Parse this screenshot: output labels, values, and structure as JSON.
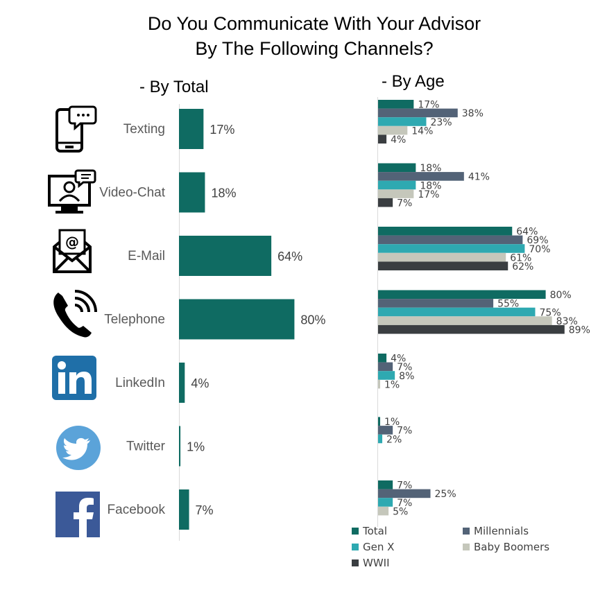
{
  "title_line1": "Do You Communicate With Your Advisor",
  "title_line2": "By The Following Channels?",
  "subheading_total": "- By Total",
  "subheading_age": "- By Age",
  "colors": {
    "total": "#0f6b62",
    "millennials": "#536377",
    "genx": "#2ea9b1",
    "boomers": "#c5c7bb",
    "wwii": "#3a3e41"
  },
  "icons": [
    "phone-chat-icon",
    "video-chat-icon",
    "email-icon",
    "telephone-icon",
    "linkedin-icon",
    "twitter-icon",
    "facebook-icon"
  ],
  "chart_data": [
    {
      "type": "bar",
      "orientation": "horizontal",
      "subtitle": "- By Total",
      "categories": [
        "Texting",
        "Video-Chat",
        "E-Mail",
        "Telephone",
        "LinkedIn",
        "Twitter",
        "Facebook"
      ],
      "values": [
        17,
        18,
        64,
        80,
        4,
        1,
        7
      ],
      "value_format": "{v}%",
      "xlim": [
        0,
        100
      ]
    },
    {
      "type": "bar",
      "orientation": "horizontal",
      "subtitle": "- By Age",
      "categories": [
        "Texting",
        "Video-Chat",
        "E-Mail",
        "Telephone",
        "LinkedIn",
        "Twitter",
        "Facebook"
      ],
      "series": [
        {
          "name": "Total",
          "values": [
            17,
            18,
            64,
            80,
            4,
            1,
            7
          ]
        },
        {
          "name": "Millennials",
          "values": [
            38,
            41,
            69,
            55,
            7,
            7,
            25
          ]
        },
        {
          "name": "Gen X",
          "values": [
            23,
            18,
            70,
            75,
            8,
            2,
            7
          ]
        },
        {
          "name": "Baby Boomers",
          "values": [
            14,
            17,
            61,
            83,
            1,
            null,
            5
          ]
        },
        {
          "name": "WWII",
          "values": [
            4,
            7,
            62,
            89,
            null,
            null,
            null
          ]
        }
      ],
      "value_format": "{v}%",
      "xlim": [
        0,
        100
      ],
      "legend": "bottom"
    }
  ]
}
